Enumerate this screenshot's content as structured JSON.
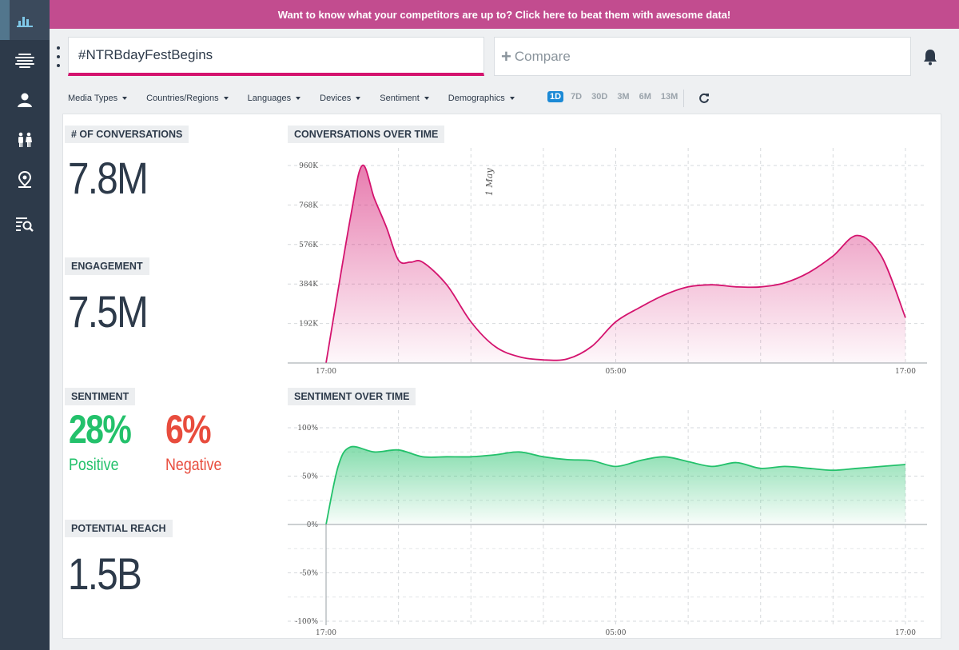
{
  "banner": {
    "text": "Want to know what your competitors are up to? Click here to beat them with awesome data!"
  },
  "sidebar": {
    "items": [
      {
        "icon": "bar-chart-icon",
        "active": true
      },
      {
        "icon": "media-stream-icon",
        "active": false
      },
      {
        "icon": "user-card-icon",
        "active": false
      },
      {
        "icon": "people-icon",
        "active": false
      },
      {
        "icon": "map-pin-icon",
        "active": false
      },
      {
        "icon": "list-search-icon",
        "active": false
      }
    ]
  },
  "search": {
    "value": "#NTRBdayFestBegins"
  },
  "compare": {
    "label": "Compare"
  },
  "filters": [
    {
      "label": "Media Types"
    },
    {
      "label": "Countries/Regions"
    },
    {
      "label": "Languages"
    },
    {
      "label": "Devices"
    },
    {
      "label": "Sentiment"
    },
    {
      "label": "Demographics"
    }
  ],
  "ranges": [
    {
      "label": "1D",
      "active": true
    },
    {
      "label": "7D",
      "active": false
    },
    {
      "label": "30D",
      "active": false
    },
    {
      "label": "3M",
      "active": false
    },
    {
      "label": "6M",
      "active": false
    },
    {
      "label": "13M",
      "active": false
    }
  ],
  "metrics": {
    "conversations": {
      "label": "# OF CONVERSATIONS",
      "value": "7.8M"
    },
    "engagement": {
      "label": "ENGAGEMENT",
      "value": "7.5M"
    },
    "sentiment": {
      "label": "SENTIMENT",
      "positive_value": "28%",
      "positive_label": "Positive",
      "negative_value": "6%",
      "negative_label": "Negative"
    },
    "reach": {
      "label": "POTENTIAL REACH",
      "value": "1.5B"
    }
  },
  "colors": {
    "accent": "#d4136e",
    "banner": "#c24c8f",
    "positive": "#23c16b",
    "negative": "#e84c3d",
    "sidebar": "#2d3a4a",
    "active_range": "#1c8ad6"
  },
  "chart_data": [
    {
      "type": "area",
      "title": "CONVERSATIONS OVER TIME",
      "color": "#d4136e",
      "x": [
        0,
        1,
        1.5,
        2,
        2.5,
        3,
        3.5,
        4,
        5,
        6,
        7,
        8,
        9,
        10,
        11,
        12,
        13,
        14,
        15,
        16,
        17,
        18,
        19,
        20,
        21,
        22,
        23,
        24
      ],
      "y": [
        0,
        700000,
        960000,
        800000,
        660000,
        500000,
        490000,
        490000,
        380000,
        200000,
        80000,
        30000,
        15000,
        20000,
        80000,
        200000,
        270000,
        330000,
        370000,
        380000,
        370000,
        370000,
        390000,
        440000,
        520000,
        620000,
        520000,
        220000
      ],
      "x_tick_labels": [
        "17:00",
        "05:00",
        "17:00"
      ],
      "y_tick_labels": [
        "192K",
        "384K",
        "576K",
        "768K",
        "960K"
      ],
      "ylim": [
        0,
        960000
      ],
      "annotation": "1 May",
      "grid": true
    },
    {
      "type": "area",
      "title": "SENTIMENT OVER TIME",
      "color": "#23c16b",
      "x": [
        0,
        0.5,
        1,
        2,
        3,
        4,
        5,
        6,
        7,
        8,
        9,
        10,
        11,
        12,
        13,
        14,
        15,
        16,
        17,
        18,
        19,
        20,
        21,
        22,
        23,
        24
      ],
      "y": [
        0,
        60,
        80,
        75,
        77,
        70,
        70,
        70,
        72,
        75,
        70,
        67,
        66,
        60,
        66,
        70,
        65,
        60,
        64,
        58,
        60,
        58,
        56,
        58,
        60,
        62
      ],
      "x_tick_labels": [
        "17:00",
        "05:00",
        "17:00"
      ],
      "y_tick_labels": [
        "100%",
        "50%",
        "0%",
        "-50%",
        "-100%"
      ],
      "ylim": [
        -100,
        100
      ],
      "grid": true
    }
  ]
}
